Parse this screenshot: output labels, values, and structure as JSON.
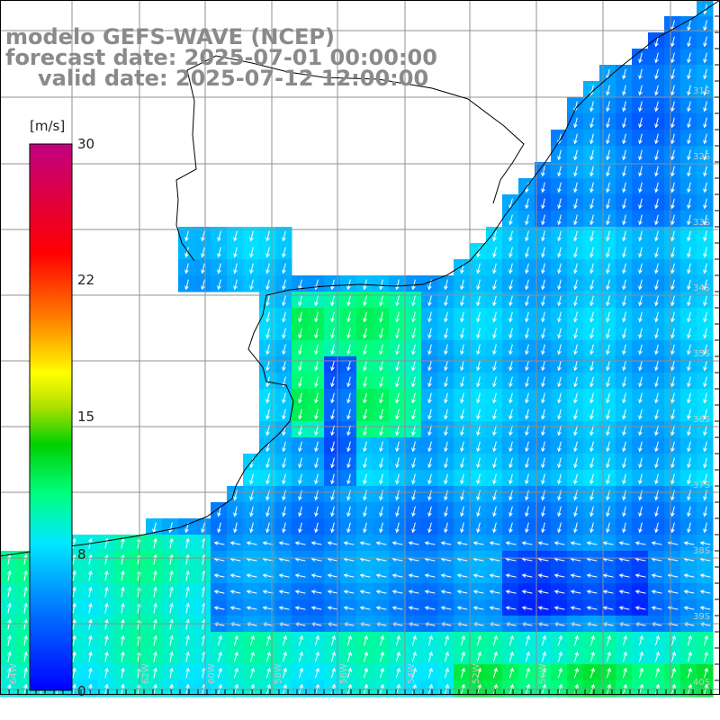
{
  "header": {
    "title": "modelo GEFS-WAVE (NCEP)",
    "forecast_date": "forecast date: 2025-07-01 00:00:00",
    "valid_date": "valid date: 2025-07-12 12:00:00"
  },
  "colorbar": {
    "unit": "[m/s]",
    "ticks": [
      "30",
      "22",
      "15",
      "8",
      "0"
    ],
    "colors": [
      "#0000ff",
      "#0070ff",
      "#00d8ff",
      "#00ff90",
      "#00e000",
      "#ffff00",
      "#ff8000",
      "#ff0000",
      "#c00080"
    ]
  },
  "lat_labels": [
    "31S",
    "32S",
    "33S",
    "34S",
    "35S",
    "36S",
    "37S",
    "38S",
    "39S",
    "40S"
  ],
  "lon_labels": [
    "64W",
    "62W",
    "60W",
    "58W",
    "56W",
    "54W",
    "52W",
    "50W"
  ]
}
